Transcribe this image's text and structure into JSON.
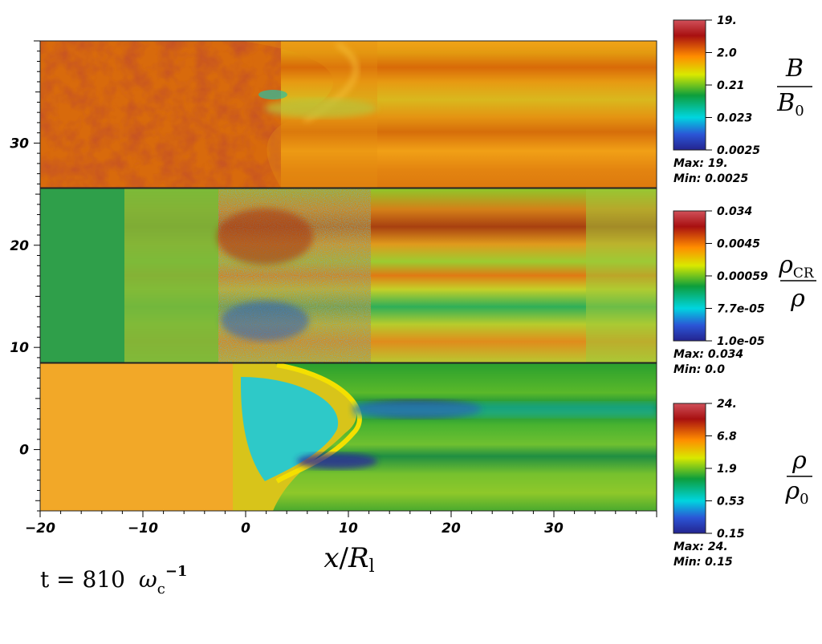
{
  "chart_data": {
    "type": "heatmap",
    "x_axis": {
      "label_var": "x",
      "label_sep": "/",
      "label_den": "R",
      "label_sub": "l",
      "range": [
        -20,
        40
      ],
      "ticks": [
        -20,
        -10,
        0,
        10,
        20,
        30
      ],
      "tick_labels": [
        "−20",
        "−10",
        "0",
        "10",
        "20",
        "30"
      ]
    },
    "y_axis": {
      "range": [
        -6,
        40
      ],
      "ticks": [
        0,
        10,
        20,
        30
      ],
      "tick_labels": [
        "0",
        "10",
        "20",
        "30"
      ]
    },
    "panels": [
      {
        "quantity_num": "B",
        "quantity_den_main": "B",
        "quantity_den_sub": "0",
        "colorbar_ticks": [
          "19.",
          "2.0",
          "0.21",
          "0.023",
          "0.0025"
        ],
        "max_label": "Max:",
        "max_value": "19.",
        "min_label": "Min:",
        "min_value": "0.0025"
      },
      {
        "quantity_num_main": "ρ",
        "quantity_num_sub": "CR",
        "quantity_den": "ρ",
        "colorbar_ticks": [
          "0.034",
          "0.0045",
          "0.00059",
          "7.7e-05",
          "1.0e-05"
        ],
        "max_label": "Max:",
        "max_value": "0.034",
        "min_label": "Min:",
        "min_value": "0.0"
      },
      {
        "quantity_num": "ρ",
        "quantity_den_main": "ρ",
        "quantity_den_sub": "0",
        "colorbar_ticks": [
          "24.",
          "6.8",
          "1.9",
          "0.53",
          "0.15"
        ],
        "max_label": "Max:",
        "max_value": "24.",
        "min_label": "Min:",
        "min_value": "0.15"
      }
    ],
    "time": {
      "prefix": "t = 810",
      "symbol": "ω",
      "sub": "c",
      "sup": "−1"
    },
    "colormap": [
      "#2a2a9a",
      "#00d8e0",
      "#0a9a3a",
      "#e0e000",
      "#ff8a00",
      "#b01010",
      "#d05060"
    ]
  }
}
